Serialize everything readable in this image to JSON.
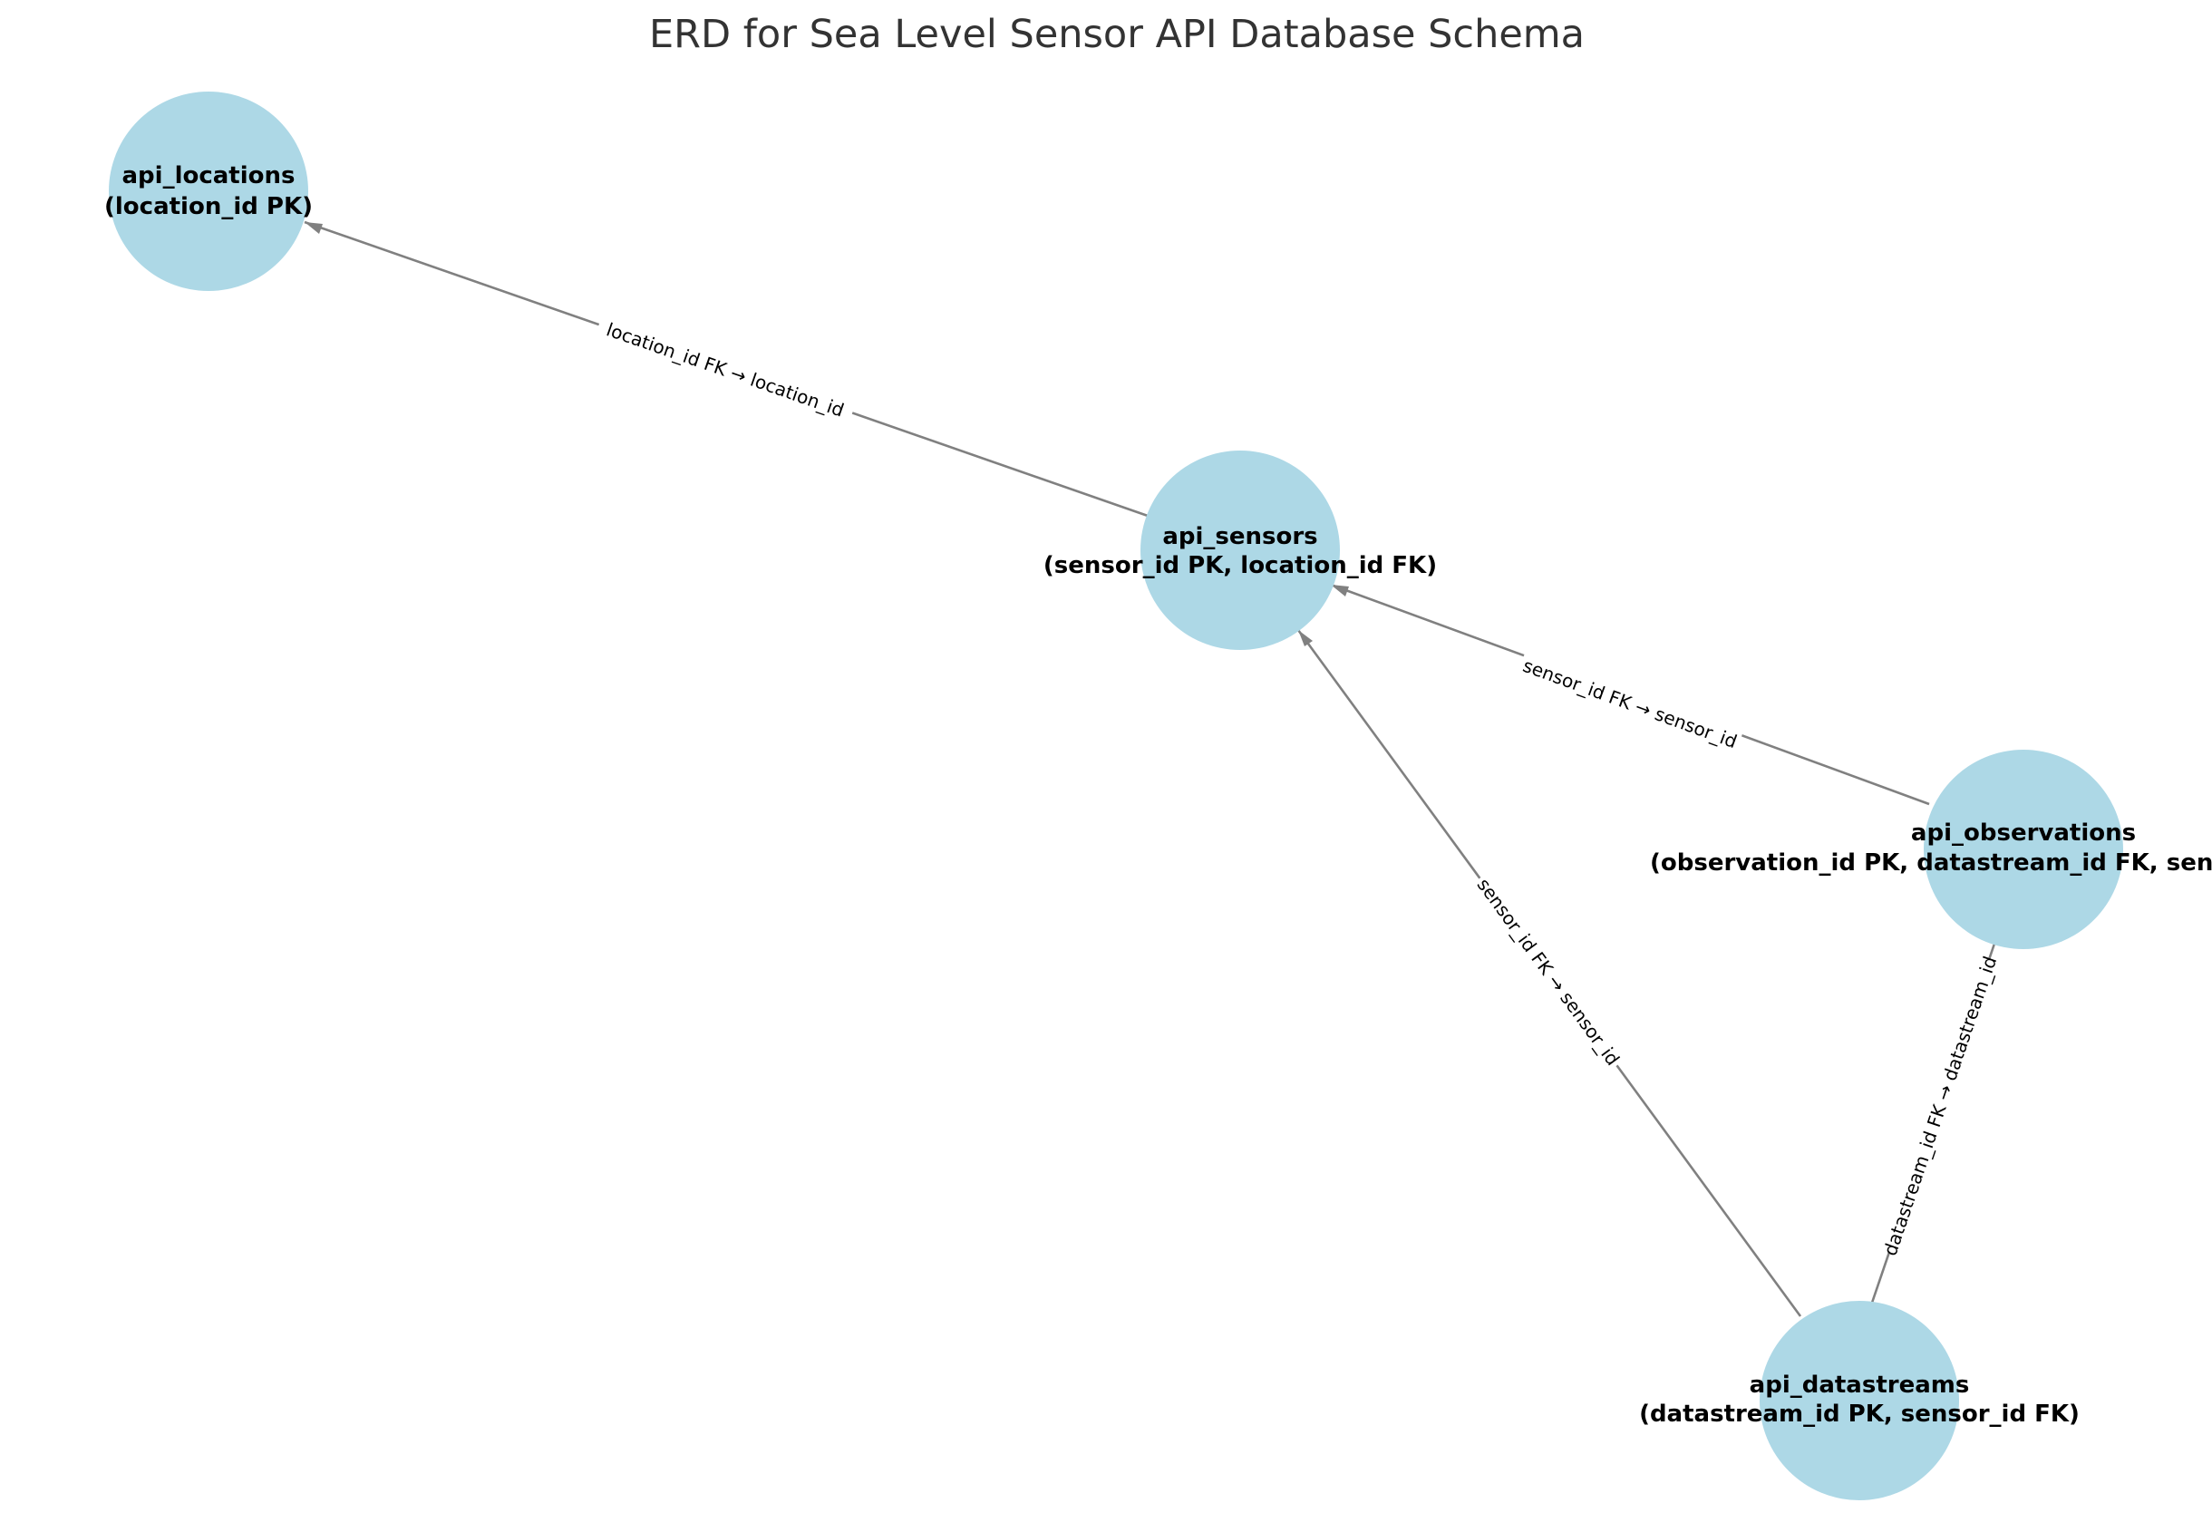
{
  "title": "ERD for Sea Level Sensor API Database Schema",
  "colors": {
    "node_fill": "#add8e6",
    "edge": "#808080",
    "title_text": "#333333",
    "label_text": "#000000"
  },
  "nodes": {
    "api_locations": {
      "name": "api_locations",
      "fields": "(location_id PK)"
    },
    "api_sensors": {
      "name": "api_sensors",
      "fields": "(sensor_id PK, location_id FK)"
    },
    "api_observations": {
      "name": "api_observations",
      "fields": "(observation_id PK, datastream_id FK, sensor_id FK)"
    },
    "api_datastreams": {
      "name": "api_datastreams",
      "fields": "(datastream_id PK, sensor_id FK)"
    }
  },
  "edges": {
    "sensors_to_locations": {
      "from": "api_sensors",
      "to": "api_locations",
      "label": "location_id FK → location_id"
    },
    "observations_to_sensors": {
      "from": "api_observations",
      "to": "api_sensors",
      "label": "sensor_id FK → sensor_id"
    },
    "datastreams_to_sensors": {
      "from": "api_datastreams",
      "to": "api_sensors",
      "label": "sensor_id FK → sensor_id"
    },
    "observations_to_datastreams": {
      "from": "api_observations",
      "to": "api_datastreams",
      "label": "datastream_id FK → datastream_id"
    }
  }
}
